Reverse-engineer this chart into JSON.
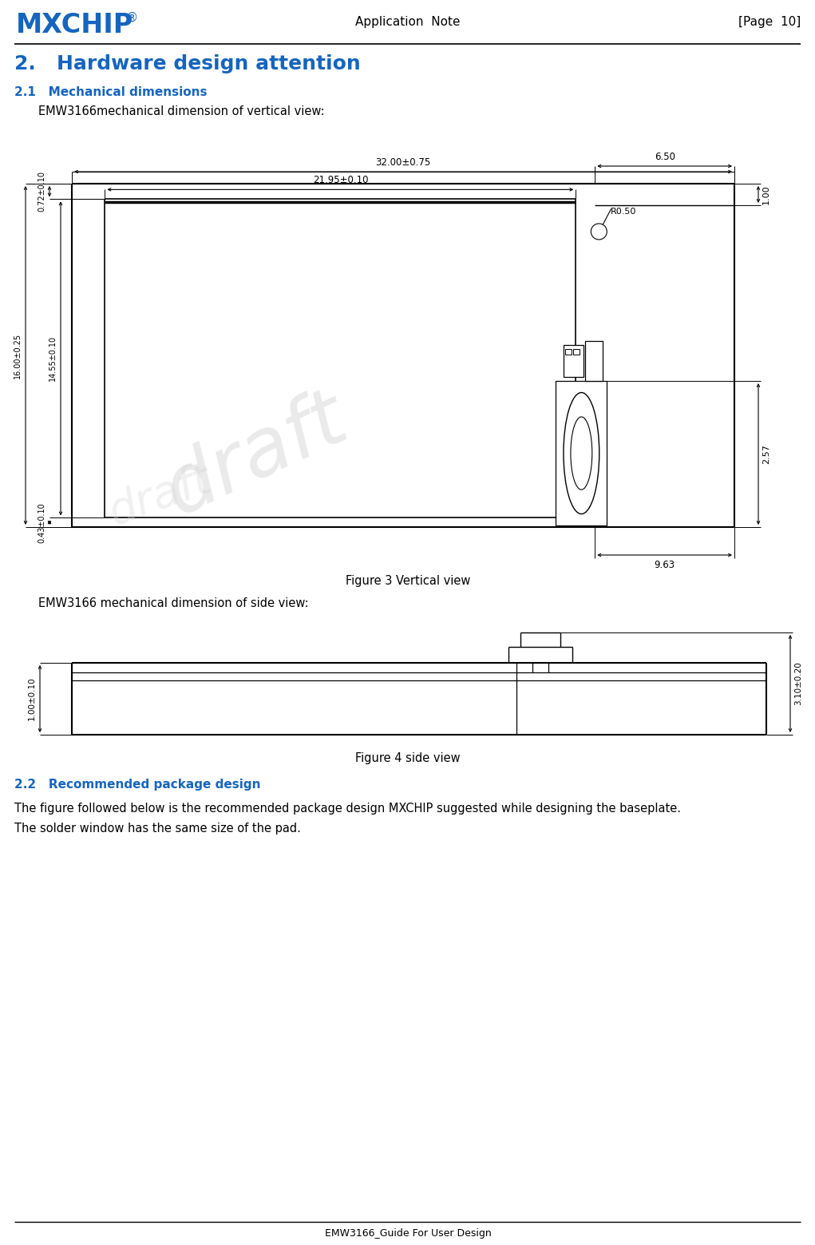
{
  "page_title": "Application  Note",
  "page_num": "[Page  10]",
  "logo_text": "MXCHIP",
  "logo_sup": "®",
  "logo_color": "#1565C0",
  "section2_title": "2.   Hardware design attention",
  "section21_title": "2.1   Mechanical dimensions",
  "emw_vertical_text": "EMW3166mechanical dimension of vertical view:",
  "figure3_caption": "Figure 3 Vertical view",
  "emw_side_text": "EMW3166 mechanical dimension of side view:",
  "figure4_caption": "Figure 4 side view",
  "section22_title": "2.2   Recommended package design",
  "section22_body1": "The figure followed below is the recommended package design MXCHIP suggested while designing the baseplate.",
  "section22_body2": "The solder window has the same size of the pad.",
  "footer_text": "EMW3166_Guide For User Design",
  "dim_32": "32.00±0.75",
  "dim_2195": "21.95±0.10",
  "dim_072": "0.72±0.10",
  "dim_16": "16.00±0.25",
  "dim_1455": "14.55±0.10",
  "dim_043": "0.43±0.10",
  "dim_650": "6.50",
  "dim_r050": "R0.50",
  "dim_100_right": "1.00",
  "dim_257": "2.57",
  "dim_963": "9.63",
  "dim_100_left": "1.00±0.10",
  "dim_310": "3.10±0.20",
  "line_color": "#000000",
  "section_color": "#1565C0",
  "bg_color": "#ffffff",
  "draft_text": "draft"
}
